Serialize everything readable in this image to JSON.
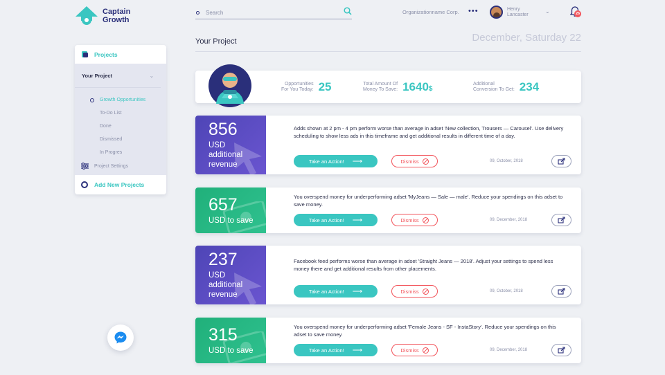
{
  "brand": {
    "line1": "Captain",
    "line2": "Growth"
  },
  "search": {
    "placeholder": "Search"
  },
  "header": {
    "org": "Organizationname Corp.",
    "user_first": "Henry",
    "user_last": "Lancaster",
    "notifications": "26"
  },
  "sidebar": {
    "projects": "Projects",
    "your_project": "Your Project",
    "items": [
      "Growth Opportunities",
      "To-Do List",
      "Done",
      "Dismissed",
      "In Progres"
    ],
    "settings": "Project Settings",
    "add": "Add New Projects"
  },
  "main": {
    "title": "Your Project",
    "date": "December, Saturday 22"
  },
  "stats": [
    {
      "l1": "Opportunities",
      "l2": "For You Today:",
      "value": "25",
      "suffix": ""
    },
    {
      "l1": "Total Amount Of",
      "l2": "Money To Save:",
      "value": "1640",
      "suffix": "$"
    },
    {
      "l1": "Additional",
      "l2": "Conversion To Get:",
      "value": "234",
      "suffix": ""
    }
  ],
  "cards": [
    {
      "num": "856",
      "unit1": "USD",
      "unit2": "additional",
      "unit3": "revenue",
      "text": "Adds shown at 2 pm - 4 pm perform worse than average in adset 'New collection, Trousers — Carousel'. Use delivery scheduling to show less ads in this timeframe and get additional results in different time of a day.",
      "date": "09, October, 2018"
    },
    {
      "num": "657",
      "unit1": "USD to save",
      "text": "You overspend money for underperforming adset 'MyJeans — Sale — male'. Reduce your spendings on this adset to save money.",
      "date": "09, December, 2018"
    },
    {
      "num": "237",
      "unit1": "USD",
      "unit2": "additional",
      "unit3": "revenue",
      "text": "Facebook feed performs worse than average in adset 'Straight Jeans — 2018'. Adjust your settings to spend less money there and get additional results from other placements.",
      "date": "09, October, 2018"
    },
    {
      "num": "315",
      "unit1": "USD to save",
      "text": "You overspend money for underperforming adset 'Female Jeans - SF - InstaStory'. Reduce your spendings on this adset to save money.",
      "date": "09, December, 2018"
    }
  ],
  "buttons": {
    "action": "Take an Action!",
    "dismiss": "Dismiss"
  },
  "colors": {
    "teal": "#3ac6c1",
    "navy": "#2a2f7a",
    "red": "#f2545b",
    "purple": "#5a4ec6",
    "green": "#26b883"
  },
  "icons": [
    "logo-icon",
    "search-icon",
    "more-icon",
    "chevron-down-icon",
    "bell-icon",
    "projects-icon",
    "settings-icon",
    "add-icon",
    "arrow-right-icon",
    "dismiss-icon",
    "share-icon",
    "messenger-icon"
  ]
}
